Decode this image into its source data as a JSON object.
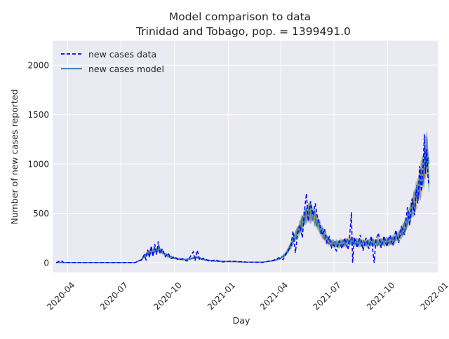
{
  "chart_data": {
    "type": "line",
    "title": "Model comparison to data",
    "subtitle": "Trinidad and Tobago, pop. = 1399491.0",
    "xlabel": "Day",
    "ylabel": "Number of new cases reported",
    "xlim": [
      "2020-03-06",
      "2021-12-26"
    ],
    "ylim": [
      -100,
      2250
    ],
    "x_ticks": [
      "2020-04",
      "2020-07",
      "2020-10",
      "2021-01",
      "2021-04",
      "2021-07",
      "2021-10",
      "2022-01"
    ],
    "x_tick_dates": [
      "2020-04-01",
      "2020-07-01",
      "2020-10-01",
      "2021-01-01",
      "2021-04-01",
      "2021-07-01",
      "2021-10-01",
      "2022-01-01"
    ],
    "y_ticks": [
      0,
      500,
      1000,
      1500,
      2000
    ],
    "grid": true,
    "legend_position": "top-left",
    "series": [
      {
        "name": "new cases data",
        "style": "dashed",
        "color": "#0000ff",
        "points": [
          [
            "2020-03-12",
            0
          ],
          [
            "2020-03-20",
            20
          ],
          [
            "2020-03-25",
            2
          ],
          [
            "2020-04-15",
            1
          ],
          [
            "2020-06-01",
            0
          ],
          [
            "2020-07-25",
            0
          ],
          [
            "2020-08-05",
            25
          ],
          [
            "2020-08-10",
            80
          ],
          [
            "2020-08-13",
            30
          ],
          [
            "2020-08-16",
            130
          ],
          [
            "2020-08-19",
            50
          ],
          [
            "2020-08-22",
            170
          ],
          [
            "2020-08-25",
            60
          ],
          [
            "2020-08-28",
            190
          ],
          [
            "2020-08-31",
            80
          ],
          [
            "2020-09-03",
            215
          ],
          [
            "2020-09-06",
            90
          ],
          [
            "2020-09-10",
            140
          ],
          [
            "2020-09-15",
            60
          ],
          [
            "2020-09-20",
            95
          ],
          [
            "2020-09-25",
            40
          ],
          [
            "2020-10-01",
            60
          ],
          [
            "2020-10-08",
            25
          ],
          [
            "2020-10-15",
            40
          ],
          [
            "2020-10-22",
            15
          ],
          [
            "2020-10-28",
            60
          ],
          [
            "2020-11-02",
            110
          ],
          [
            "2020-11-05",
            20
          ],
          [
            "2020-11-09",
            125
          ],
          [
            "2020-11-13",
            25
          ],
          [
            "2020-11-20",
            45
          ],
          [
            "2020-12-01",
            10
          ],
          [
            "2020-12-10",
            30
          ],
          [
            "2020-12-20",
            5
          ],
          [
            "2021-01-05",
            15
          ],
          [
            "2021-02-01",
            5
          ],
          [
            "2021-03-01",
            3
          ],
          [
            "2021-03-20",
            25
          ],
          [
            "2021-03-28",
            50
          ],
          [
            "2021-04-05",
            30
          ],
          [
            "2021-04-12",
            110
          ],
          [
            "2021-04-18",
            160
          ],
          [
            "2021-04-22",
            320
          ],
          [
            "2021-04-26",
            100
          ],
          [
            "2021-04-30",
            300
          ],
          [
            "2021-05-04",
            380
          ],
          [
            "2021-05-08",
            250
          ],
          [
            "2021-05-12",
            550
          ],
          [
            "2021-05-15",
            700
          ],
          [
            "2021-05-18",
            420
          ],
          [
            "2021-05-22",
            620
          ],
          [
            "2021-05-26",
            480
          ],
          [
            "2021-05-30",
            600
          ],
          [
            "2021-06-03",
            450
          ],
          [
            "2021-06-07",
            380
          ],
          [
            "2021-06-11",
            280
          ],
          [
            "2021-06-15",
            340
          ],
          [
            "2021-06-19",
            200
          ],
          [
            "2021-06-23",
            260
          ],
          [
            "2021-06-27",
            150
          ],
          [
            "2021-07-01",
            180
          ],
          [
            "2021-07-05",
            120
          ],
          [
            "2021-07-10",
            220
          ],
          [
            "2021-07-15",
            140
          ],
          [
            "2021-07-20",
            250
          ],
          [
            "2021-07-25",
            130
          ],
          [
            "2021-07-28",
            260
          ],
          [
            "2021-07-31",
            510
          ],
          [
            "2021-08-02",
            0
          ],
          [
            "2021-08-05",
            250
          ],
          [
            "2021-08-10",
            150
          ],
          [
            "2021-08-15",
            280
          ],
          [
            "2021-08-20",
            120
          ],
          [
            "2021-08-25",
            250
          ],
          [
            "2021-08-30",
            140
          ],
          [
            "2021-09-03",
            270
          ],
          [
            "2021-09-06",
            100
          ],
          [
            "2021-09-08",
            0
          ],
          [
            "2021-09-11",
            230
          ],
          [
            "2021-09-15",
            300
          ],
          [
            "2021-09-20",
            150
          ],
          [
            "2021-09-25",
            270
          ],
          [
            "2021-09-30",
            160
          ],
          [
            "2021-10-05",
            280
          ],
          [
            "2021-10-10",
            170
          ],
          [
            "2021-10-15",
            330
          ],
          [
            "2021-10-20",
            200
          ],
          [
            "2021-10-25",
            360
          ],
          [
            "2021-10-30",
            280
          ],
          [
            "2021-11-04",
            560
          ],
          [
            "2021-11-08",
            380
          ],
          [
            "2021-11-12",
            650
          ],
          [
            "2021-11-16",
            480
          ],
          [
            "2021-11-19",
            740
          ],
          [
            "2021-11-22",
            600
          ],
          [
            "2021-11-25",
            980
          ],
          [
            "2021-11-28",
            720
          ],
          [
            "2021-12-01",
            1000
          ],
          [
            "2021-12-03",
            1300
          ],
          [
            "2021-12-05",
            900
          ],
          [
            "2021-12-07",
            1150
          ],
          [
            "2021-12-09",
            880
          ],
          [
            "2021-12-11",
            780
          ]
        ]
      },
      {
        "name": "new cases model",
        "style": "solid",
        "color": "#1f77b4",
        "points": [
          [
            "2020-03-12",
            0
          ],
          [
            "2020-04-15",
            0
          ],
          [
            "2020-06-01",
            0
          ],
          [
            "2020-07-25",
            0
          ],
          [
            "2020-08-05",
            30
          ],
          [
            "2020-08-10",
            60
          ],
          [
            "2020-08-15",
            90
          ],
          [
            "2020-08-20",
            110
          ],
          [
            "2020-08-25",
            115
          ],
          [
            "2020-08-30",
            125
          ],
          [
            "2020-09-05",
            130
          ],
          [
            "2020-09-10",
            110
          ],
          [
            "2020-09-15",
            80
          ],
          [
            "2020-09-20",
            70
          ],
          [
            "2020-09-25",
            55
          ],
          [
            "2020-10-01",
            45
          ],
          [
            "2020-10-10",
            35
          ],
          [
            "2020-10-20",
            30
          ],
          [
            "2020-10-30",
            40
          ],
          [
            "2020-11-08",
            55
          ],
          [
            "2020-11-15",
            40
          ],
          [
            "2020-11-25",
            25
          ],
          [
            "2020-12-10",
            15
          ],
          [
            "2021-01-05",
            10
          ],
          [
            "2021-02-01",
            5
          ],
          [
            "2021-03-01",
            4
          ],
          [
            "2021-03-20",
            20
          ],
          [
            "2021-04-01",
            45
          ],
          [
            "2021-04-10",
            90
          ],
          [
            "2021-04-18",
            170
          ],
          [
            "2021-04-25",
            260
          ],
          [
            "2021-05-02",
            330
          ],
          [
            "2021-05-08",
            410
          ],
          [
            "2021-05-12",
            460
          ],
          [
            "2021-05-17",
            500
          ],
          [
            "2021-05-22",
            520
          ],
          [
            "2021-05-27",
            480
          ],
          [
            "2021-06-02",
            420
          ],
          [
            "2021-06-08",
            340
          ],
          [
            "2021-06-14",
            280
          ],
          [
            "2021-06-20",
            230
          ],
          [
            "2021-06-26",
            200
          ],
          [
            "2021-07-03",
            190
          ],
          [
            "2021-07-10",
            190
          ],
          [
            "2021-07-17",
            200
          ],
          [
            "2021-07-24",
            210
          ],
          [
            "2021-07-31",
            220
          ],
          [
            "2021-08-07",
            210
          ],
          [
            "2021-08-14",
            200
          ],
          [
            "2021-08-21",
            195
          ],
          [
            "2021-08-28",
            200
          ],
          [
            "2021-09-04",
            205
          ],
          [
            "2021-09-11",
            200
          ],
          [
            "2021-09-18",
            205
          ],
          [
            "2021-09-25",
            210
          ],
          [
            "2021-10-02",
            215
          ],
          [
            "2021-10-09",
            225
          ],
          [
            "2021-10-16",
            250
          ],
          [
            "2021-10-23",
            290
          ],
          [
            "2021-10-30",
            360
          ],
          [
            "2021-11-06",
            450
          ],
          [
            "2021-11-12",
            550
          ],
          [
            "2021-11-18",
            650
          ],
          [
            "2021-11-23",
            760
          ],
          [
            "2021-11-28",
            860
          ],
          [
            "2021-12-02",
            950
          ],
          [
            "2021-12-05",
            1050
          ],
          [
            "2021-12-07",
            1150
          ],
          [
            "2021-12-09",
            1050
          ],
          [
            "2021-12-11",
            880
          ]
        ]
      }
    ]
  }
}
